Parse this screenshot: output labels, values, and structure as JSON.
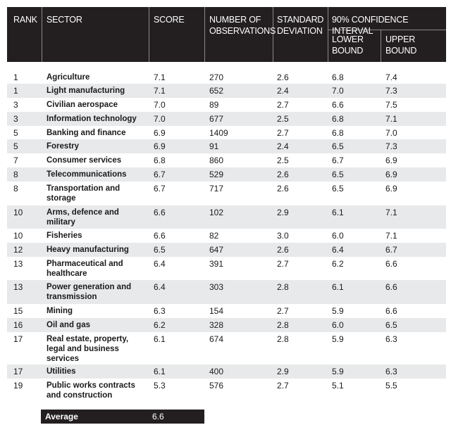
{
  "header": {
    "rank": "RANK",
    "sector": "SECTOR",
    "score": "SCORE",
    "observations": "NUMBER OF OBSERVATIONS",
    "std_dev": "STANDARD DEVIATION",
    "ci": "90% CONFIDENCE INTERVAL",
    "lower": "LOWER BOUND",
    "upper": "UPPER BOUND"
  },
  "rows": [
    {
      "rank": "1",
      "sector": "Agriculture",
      "score": "7.1",
      "obs": "270",
      "sd": "2.6",
      "lower": "6.8",
      "upper": "7.4"
    },
    {
      "rank": "1",
      "sector": "Light manufacturing",
      "score": "7.1",
      "obs": "652",
      "sd": "2.4",
      "lower": "7.0",
      "upper": "7.3"
    },
    {
      "rank": "3",
      "sector": "Civilian aerospace",
      "score": "7.0",
      "obs": "89",
      "sd": "2.7",
      "lower": "6.6",
      "upper": "7.5"
    },
    {
      "rank": "3",
      "sector": "Information technology",
      "score": "7.0",
      "obs": "677",
      "sd": "2.5",
      "lower": "6.8",
      "upper": "7.1"
    },
    {
      "rank": "5",
      "sector": "Banking and finance",
      "score": "6.9",
      "obs": "1409",
      "sd": "2.7",
      "lower": "6.8",
      "upper": "7.0"
    },
    {
      "rank": "5",
      "sector": "Forestry",
      "score": "6.9",
      "obs": "91",
      "sd": "2.4",
      "lower": "6.5",
      "upper": "7.3"
    },
    {
      "rank": "7",
      "sector": "Consumer services",
      "score": "6.8",
      "obs": "860",
      "sd": "2.5",
      "lower": "6.7",
      "upper": "6.9"
    },
    {
      "rank": "8",
      "sector": "Telecommunications",
      "score": "6.7",
      "obs": "529",
      "sd": "2.6",
      "lower": "6.5",
      "upper": "6.9"
    },
    {
      "rank": "8",
      "sector": "Transportation and storage",
      "score": "6.7",
      "obs": "717",
      "sd": "2.6",
      "lower": "6.5",
      "upper": "6.9"
    },
    {
      "rank": "10",
      "sector": "Arms, defence and military",
      "score": "6.6",
      "obs": "102",
      "sd": "2.9",
      "lower": "6.1",
      "upper": "7.1"
    },
    {
      "rank": "10",
      "sector": "Fisheries",
      "score": "6.6",
      "obs": "82",
      "sd": "3.0",
      "lower": "6.0",
      "upper": "7.1"
    },
    {
      "rank": "12",
      "sector": "Heavy manufacturing",
      "score": "6.5",
      "obs": "647",
      "sd": "2.6",
      "lower": "6.4",
      "upper": "6.7"
    },
    {
      "rank": "13",
      "sector": "Pharmaceutical and healthcare",
      "score": "6.4",
      "obs": "391",
      "sd": "2.7",
      "lower": "6.2",
      "upper": "6.6"
    },
    {
      "rank": "13",
      "sector": "Power generation and transmission",
      "score": "6.4",
      "obs": "303",
      "sd": "2.8",
      "lower": "6.1",
      "upper": "6.6"
    },
    {
      "rank": "15",
      "sector": "Mining",
      "score": "6.3",
      "obs": "154",
      "sd": "2.7",
      "lower": "5.9",
      "upper": "6.6"
    },
    {
      "rank": "16",
      "sector": "Oil and gas",
      "score": "6.2",
      "obs": "328",
      "sd": "2.8",
      "lower": "6.0",
      "upper": "6.5"
    },
    {
      "rank": "17",
      "sector": "Real estate, property, legal and business services",
      "score": "6.1",
      "obs": "674",
      "sd": "2.8",
      "lower": "5.9",
      "upper": "6.3"
    },
    {
      "rank": "17",
      "sector": "Utilities",
      "score": "6.1",
      "obs": "400",
      "sd": "2.9",
      "lower": "5.9",
      "upper": "6.3"
    },
    {
      "rank": "19",
      "sector": "Public works contracts and construction",
      "score": "5.3",
      "obs": "576",
      "sd": "2.7",
      "lower": "5.1",
      "upper": "5.5"
    }
  ],
  "average": {
    "label": "Average",
    "score": "6.6"
  }
}
